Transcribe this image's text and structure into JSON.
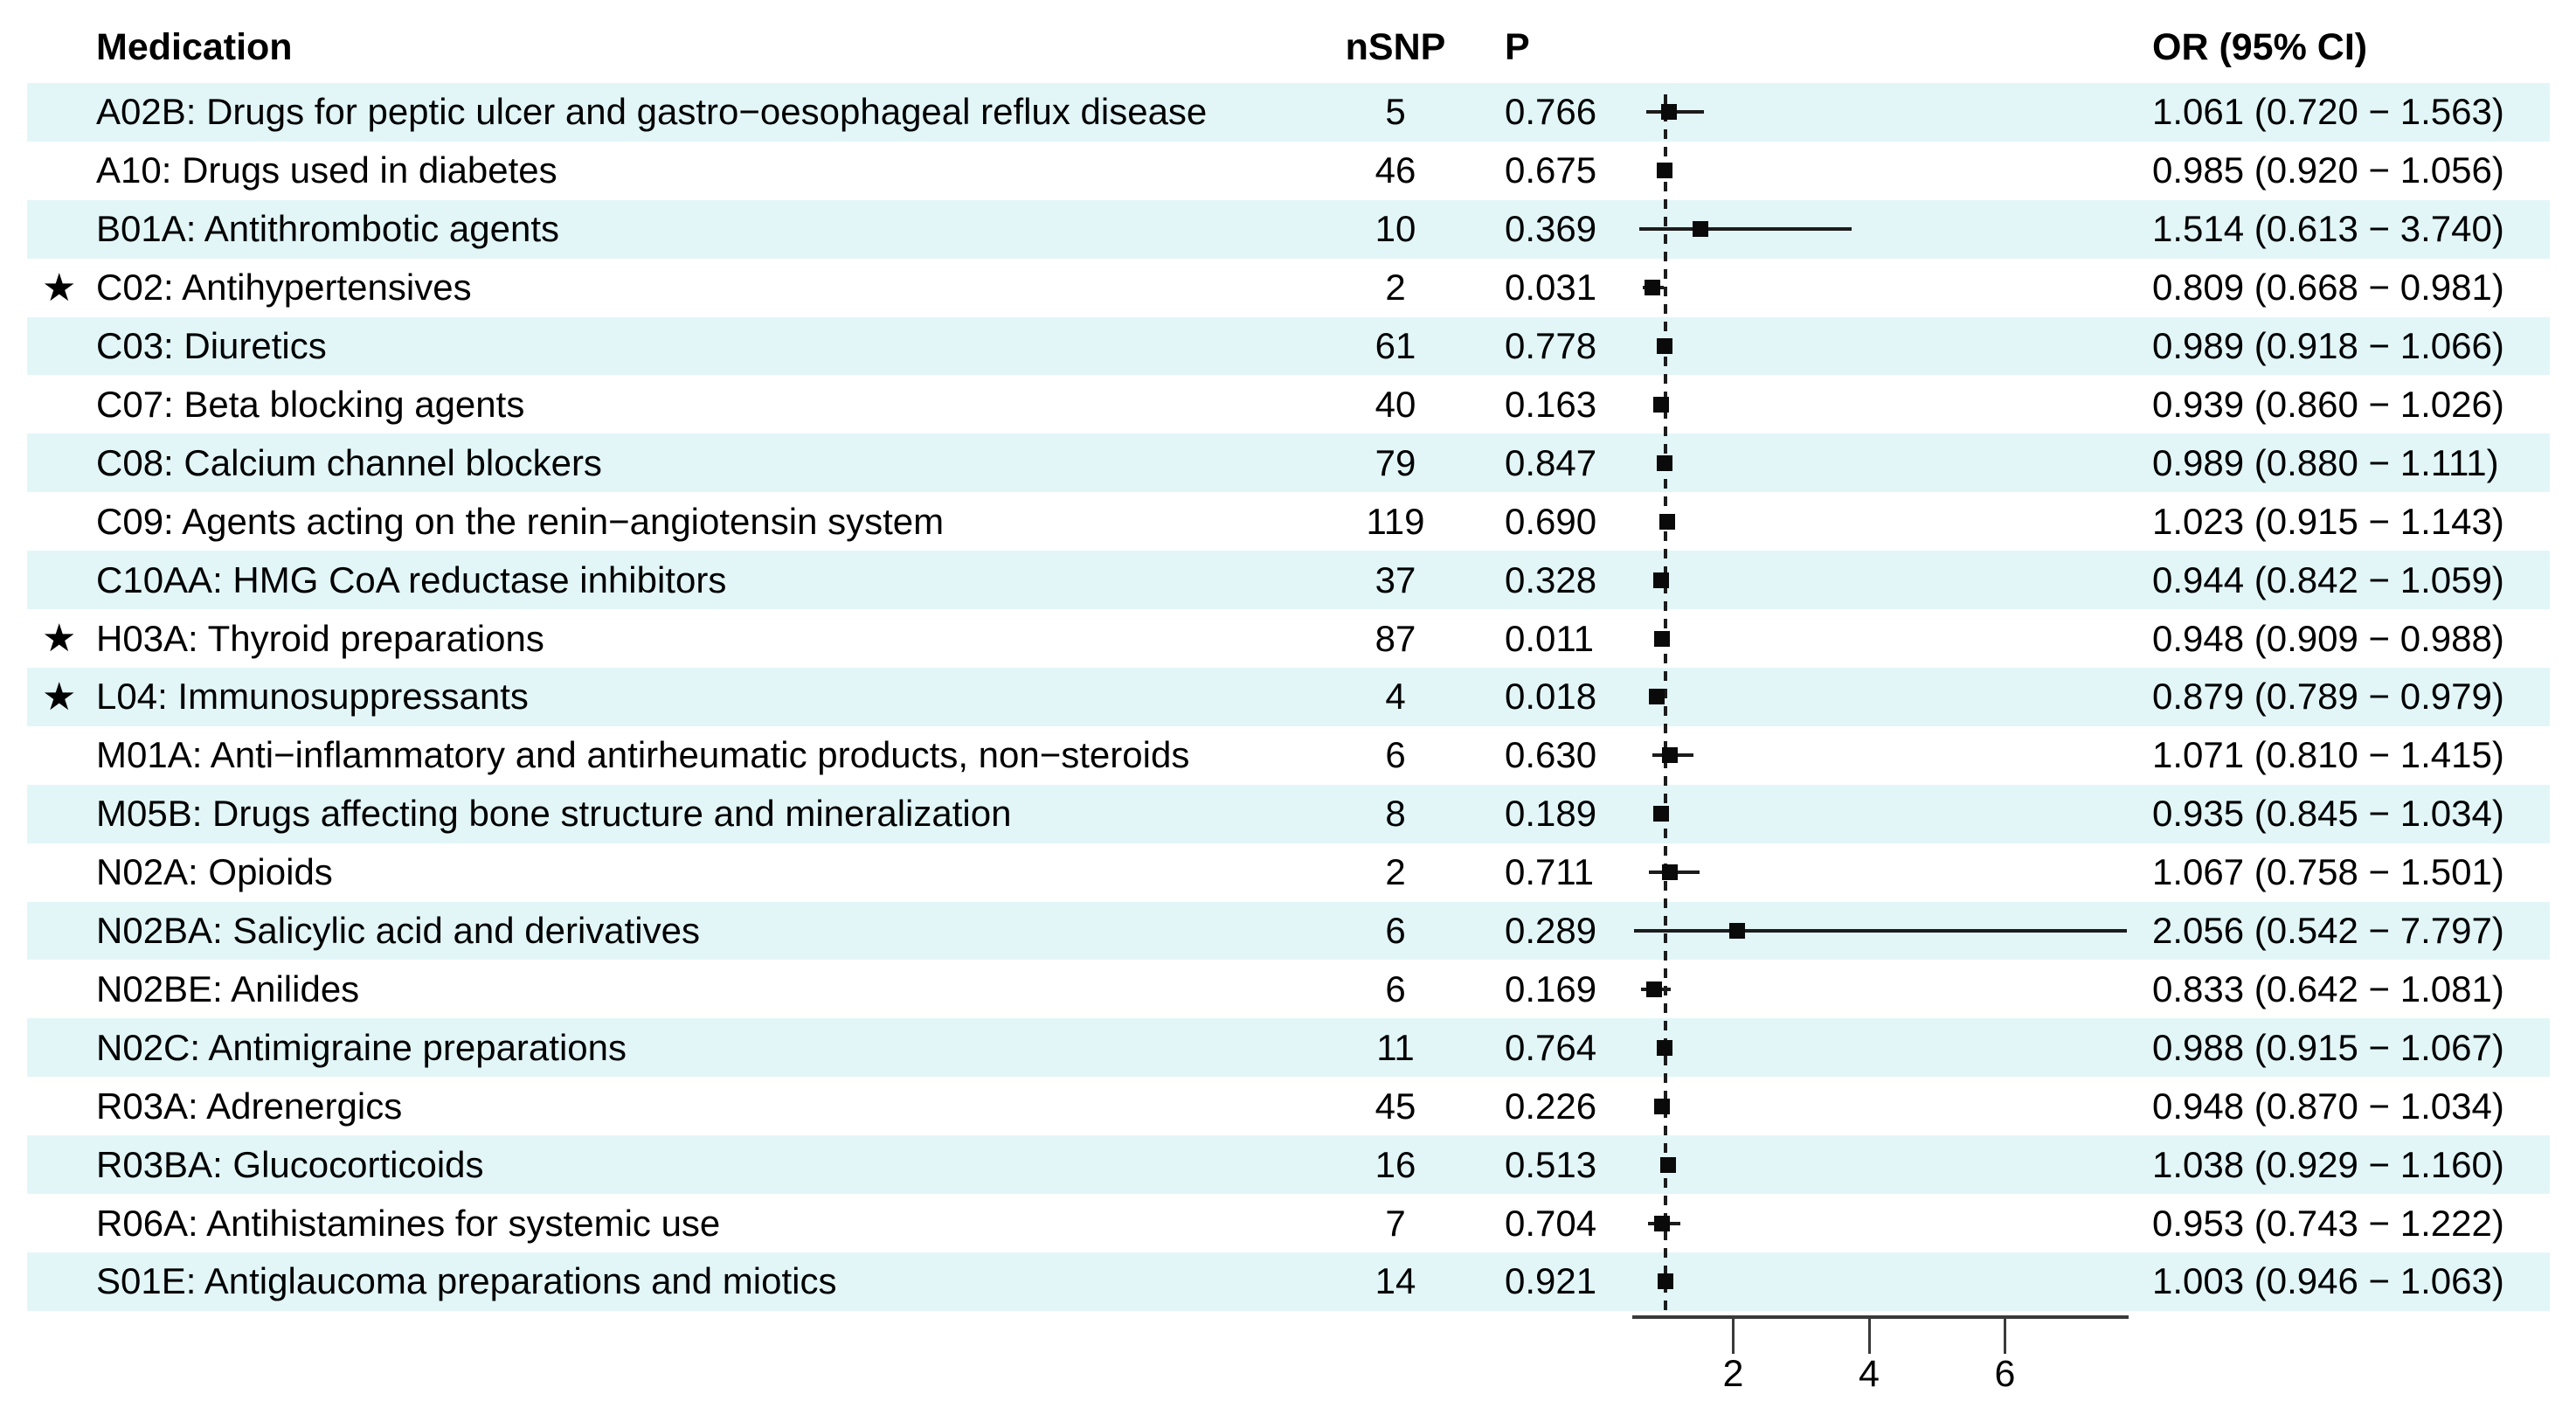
{
  "figure": {
    "columns": {
      "medication": "Medication",
      "nsnp": "nSNP",
      "p": "P",
      "or_ci": "OR (95% CI)"
    }
  },
  "chart_data": {
    "type": "scatter",
    "variant": "forest-plot",
    "title": "",
    "xlabel": "",
    "ylabel": "",
    "legend": null,
    "grid": false,
    "x_axis": {
      "scale": "linear",
      "ticks": [
        2,
        4,
        6
      ],
      "reference_line": 1.0,
      "range": [
        0.542,
        7.797
      ]
    },
    "or_text_format": "{or} ({low} − {high})",
    "rows": [
      {
        "label": "A02B: Drugs for peptic ulcer and gastro−oesophageal reflux disease",
        "starred": false,
        "nsnp": 5,
        "p": "0.766",
        "or": 1.061,
        "ci_low": 0.72,
        "ci_high": 1.563
      },
      {
        "label": "A10: Drugs used in diabetes",
        "starred": false,
        "nsnp": 46,
        "p": "0.675",
        "or": 0.985,
        "ci_low": 0.92,
        "ci_high": 1.056
      },
      {
        "label": "B01A: Antithrombotic agents",
        "starred": false,
        "nsnp": 10,
        "p": "0.369",
        "or": 1.514,
        "ci_low": 0.613,
        "ci_high": 3.74
      },
      {
        "label": "C02: Antihypertensives",
        "starred": true,
        "nsnp": 2,
        "p": "0.031",
        "or": 0.809,
        "ci_low": 0.668,
        "ci_high": 0.981
      },
      {
        "label": "C03: Diuretics",
        "starred": false,
        "nsnp": 61,
        "p": "0.778",
        "or": 0.989,
        "ci_low": 0.918,
        "ci_high": 1.066
      },
      {
        "label": "C07: Beta blocking agents",
        "starred": false,
        "nsnp": 40,
        "p": "0.163",
        "or": 0.939,
        "ci_low": 0.86,
        "ci_high": 1.026
      },
      {
        "label": "C08: Calcium channel blockers",
        "starred": false,
        "nsnp": 79,
        "p": "0.847",
        "or": 0.989,
        "ci_low": 0.88,
        "ci_high": 1.111
      },
      {
        "label": "C09: Agents acting on the renin−angiotensin system",
        "starred": false,
        "nsnp": 119,
        "p": "0.690",
        "or": 1.023,
        "ci_low": 0.915,
        "ci_high": 1.143
      },
      {
        "label": "C10AA: HMG CoA reductase inhibitors",
        "starred": false,
        "nsnp": 37,
        "p": "0.328",
        "or": 0.944,
        "ci_low": 0.842,
        "ci_high": 1.059
      },
      {
        "label": "H03A: Thyroid preparations",
        "starred": true,
        "nsnp": 87,
        "p": "0.011",
        "or": 0.948,
        "ci_low": 0.909,
        "ci_high": 0.988
      },
      {
        "label": "L04: Immunosuppressants",
        "starred": true,
        "nsnp": 4,
        "p": "0.018",
        "or": 0.879,
        "ci_low": 0.789,
        "ci_high": 0.979
      },
      {
        "label": "M01A: Anti−inflammatory and antirheumatic products, non−steroids",
        "starred": false,
        "nsnp": 6,
        "p": "0.630",
        "or": 1.071,
        "ci_low": 0.81,
        "ci_high": 1.415
      },
      {
        "label": "M05B: Drugs affecting bone structure and mineralization",
        "starred": false,
        "nsnp": 8,
        "p": "0.189",
        "or": 0.935,
        "ci_low": 0.845,
        "ci_high": 1.034
      },
      {
        "label": "N02A: Opioids",
        "starred": false,
        "nsnp": 2,
        "p": "0.711",
        "or": 1.067,
        "ci_low": 0.758,
        "ci_high": 1.501
      },
      {
        "label": "N02BA: Salicylic acid and derivatives",
        "starred": false,
        "nsnp": 6,
        "p": "0.289",
        "or": 2.056,
        "ci_low": 0.542,
        "ci_high": 7.797
      },
      {
        "label": "N02BE: Anilides",
        "starred": false,
        "nsnp": 6,
        "p": "0.169",
        "or": 0.833,
        "ci_low": 0.642,
        "ci_high": 1.081
      },
      {
        "label": "N02C: Antimigraine preparations",
        "starred": false,
        "nsnp": 11,
        "p": "0.764",
        "or": 0.988,
        "ci_low": 0.915,
        "ci_high": 1.067
      },
      {
        "label": "R03A: Adrenergics",
        "starred": false,
        "nsnp": 45,
        "p": "0.226",
        "or": 0.948,
        "ci_low": 0.87,
        "ci_high": 1.034
      },
      {
        "label": "R03BA: Glucocorticoids",
        "starred": false,
        "nsnp": 16,
        "p": "0.513",
        "or": 1.038,
        "ci_low": 0.929,
        "ci_high": 1.16
      },
      {
        "label": "R06A: Antihistamines for systemic use",
        "starred": false,
        "nsnp": 7,
        "p": "0.704",
        "or": 0.953,
        "ci_low": 0.743,
        "ci_high": 1.222
      },
      {
        "label": "S01E: Antiglaucoma preparations and miotics",
        "starred": false,
        "nsnp": 14,
        "p": "0.921",
        "or": 1.003,
        "ci_low": 0.946,
        "ci_high": 1.063
      }
    ]
  },
  "style": {
    "stripe_color": "#e2f6f8",
    "text_color": "#000000",
    "line_color": "#1c1c1c",
    "axis_color": "#3a3a3a",
    "star_glyph": "★"
  }
}
